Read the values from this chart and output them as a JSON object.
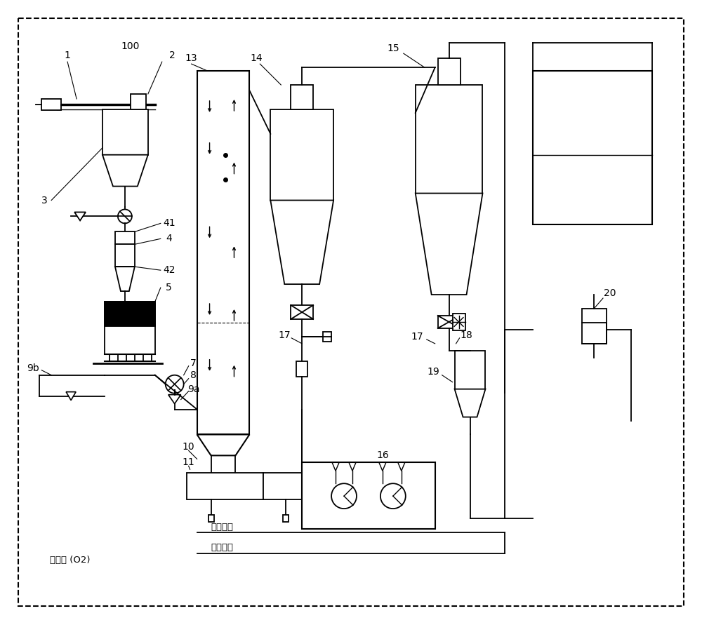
{
  "bg_color": "#ffffff",
  "line_color": "#000000",
  "text_bottom_left": "节气体 (O2)",
  "text_condensate": "冷凝给水",
  "text_cooling": "冷却回水"
}
